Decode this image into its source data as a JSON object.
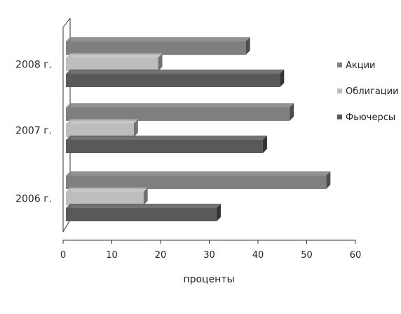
{
  "chart_data": {
    "type": "bar",
    "orientation": "horizontal",
    "style": "3d",
    "categories": [
      "2006 г.",
      "2007 г.",
      "2008 г."
    ],
    "series": [
      {
        "name": "Акции",
        "values": [
          54,
          46.5,
          37.5
        ],
        "color": "#7f7f7f"
      },
      {
        "name": "Облигации",
        "values": [
          16.5,
          14.5,
          19.5
        ],
        "color": "#bdbdbd"
      },
      {
        "name": "Фьючерсы",
        "values": [
          31.5,
          41,
          44.5
        ],
        "color": "#595959"
      }
    ],
    "xlabel": "проценты",
    "ylabel": "",
    "xlim": [
      0,
      60
    ],
    "xticks": [
      "0",
      "10",
      "20",
      "30",
      "40",
      "50",
      "60"
    ],
    "grid": false,
    "legend": "right"
  }
}
